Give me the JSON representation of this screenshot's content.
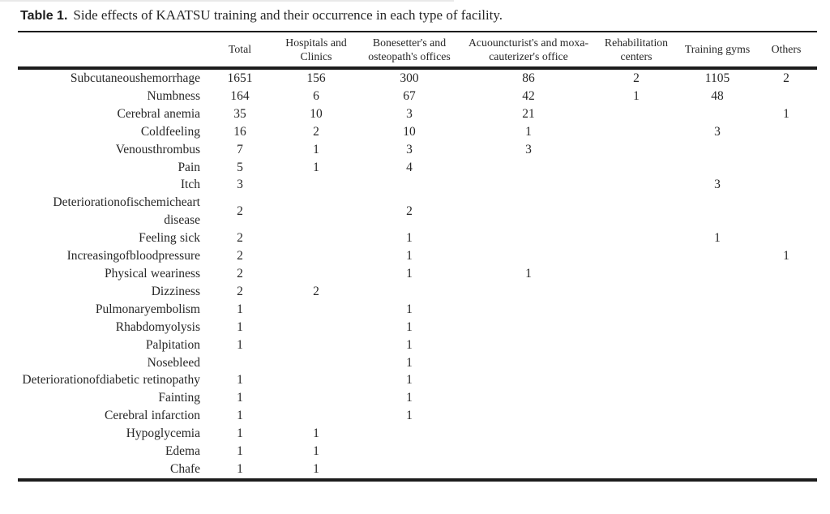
{
  "figure": {
    "caption_label": "Table 1.",
    "caption_text": "Side effects of KAATSU training and their occurrence in each type of facility."
  },
  "table": {
    "columns": [
      {
        "label": "Total"
      },
      {
        "label": "Hospitals and Clinics"
      },
      {
        "label": "Bonesetter's and osteopath's offices"
      },
      {
        "label": "Acuouncturist's and moxa-cauterizer's office"
      },
      {
        "label": "Rehabilitation centers"
      },
      {
        "label": "Training gyms"
      },
      {
        "label": "Others"
      }
    ],
    "rows": [
      {
        "label": "Subcutaneoushemorrhage",
        "values": [
          "1651",
          "156",
          "300",
          "86",
          "2",
          "1105",
          "2"
        ]
      },
      {
        "label": "Numbness",
        "values": [
          "164",
          "6",
          "67",
          "42",
          "1",
          "48",
          ""
        ]
      },
      {
        "label": "Cerebral anemia",
        "values": [
          "35",
          "10",
          "3",
          "21",
          "",
          "",
          "1"
        ]
      },
      {
        "label": "Coldfeeling",
        "values": [
          "16",
          "2",
          "10",
          "1",
          "",
          "3",
          ""
        ]
      },
      {
        "label": "Venousthrombus",
        "values": [
          "7",
          "1",
          "3",
          "3",
          "",
          "",
          ""
        ]
      },
      {
        "label": "Pain",
        "values": [
          "5",
          "1",
          "4",
          "",
          "",
          "",
          ""
        ]
      },
      {
        "label": "Itch",
        "values": [
          "3",
          "",
          "",
          "",
          "",
          "3",
          ""
        ]
      },
      {
        "label": "Deteriorationofischemicheart disease",
        "values": [
          "2",
          "",
          "2",
          "",
          "",
          "",
          ""
        ]
      },
      {
        "label": "Feeling sick",
        "values": [
          "2",
          "",
          "1",
          "",
          "",
          "1",
          ""
        ]
      },
      {
        "label": "Increasingofbloodpressure",
        "values": [
          "2",
          "",
          "1",
          "",
          "",
          "",
          "1"
        ]
      },
      {
        "label": "Physical weariness",
        "values": [
          "2",
          "",
          "1",
          "1",
          "",
          "",
          ""
        ]
      },
      {
        "label": "Dizziness",
        "values": [
          "2",
          "2",
          "",
          "",
          "",
          "",
          ""
        ]
      },
      {
        "label": "Pulmonaryembolism",
        "values": [
          "1",
          "",
          "1",
          "",
          "",
          "",
          ""
        ]
      },
      {
        "label": "Rhabdomyolysis",
        "values": [
          "1",
          "",
          "1",
          "",
          "",
          "",
          ""
        ]
      },
      {
        "label": "Palpitation",
        "values": [
          "1",
          "",
          "1",
          "",
          "",
          "",
          ""
        ]
      },
      {
        "label": "Nosebleed",
        "values": [
          "",
          "",
          "1",
          "",
          "",
          "",
          ""
        ]
      },
      {
        "label": "Deteriorationofdiabetic retinopathy",
        "values": [
          "1",
          "",
          "1",
          "",
          "",
          "",
          ""
        ]
      },
      {
        "label": "Fainting",
        "values": [
          "1",
          "",
          "1",
          "",
          "",
          "",
          ""
        ]
      },
      {
        "label": "Cerebral infarction",
        "values": [
          "1",
          "",
          "1",
          "",
          "",
          "",
          ""
        ]
      },
      {
        "label": "Hypoglycemia",
        "values": [
          "1",
          "1",
          "",
          "",
          "",
          "",
          ""
        ]
      },
      {
        "label": "Edema",
        "values": [
          "1",
          "1",
          "",
          "",
          "",
          "",
          ""
        ]
      },
      {
        "label": "Chafe",
        "values": [
          "1",
          "1",
          "",
          "",
          "",
          "",
          ""
        ]
      }
    ]
  },
  "colors": {
    "background": "#ffffff",
    "text": "#272727",
    "rule": "#1c1c1c"
  }
}
